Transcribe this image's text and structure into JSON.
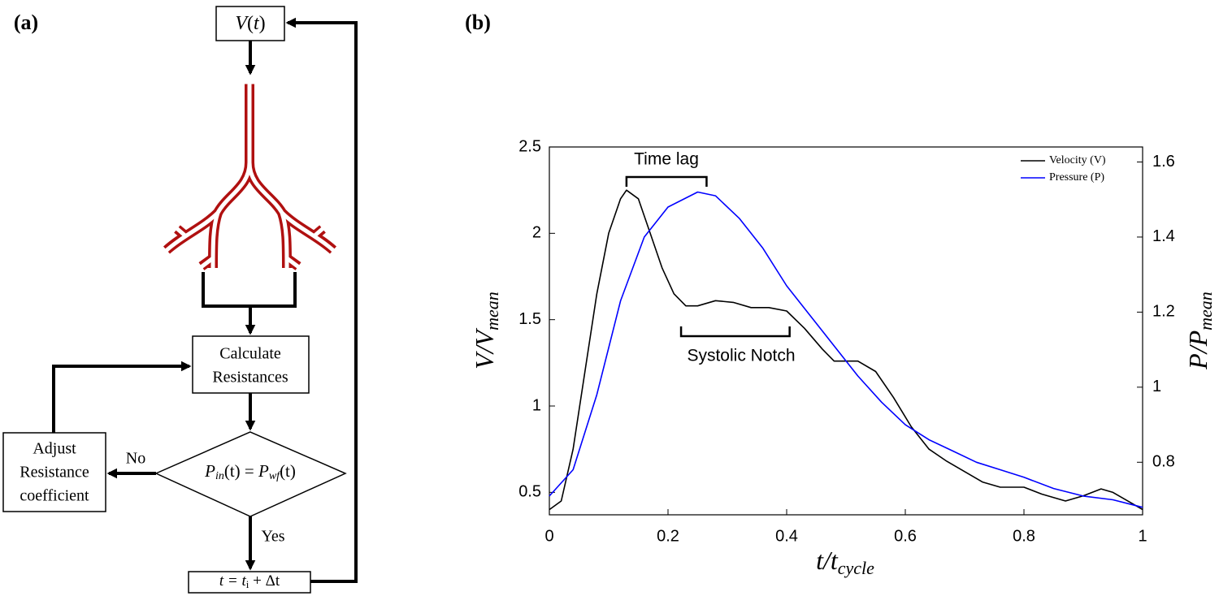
{
  "panels": {
    "a": "(a)",
    "b": "(b)"
  },
  "diagram": {
    "input_box": {
      "parts": [
        "V",
        "(",
        "t",
        ")"
      ]
    },
    "calculate_box": {
      "lines": [
        "Calculate",
        "Resistances"
      ]
    },
    "adjust_box": {
      "lines": [
        "Adjust",
        "Resistance",
        "coefficient"
      ]
    },
    "decision": {
      "parts": [
        "P",
        "in",
        "(t) = ",
        "P",
        "wf",
        "(t)"
      ]
    },
    "no_label": "No",
    "yes_label": "Yes",
    "step_box": {
      "parts": [
        "t = t",
        "i",
        " + Δt"
      ]
    }
  },
  "chart_data": {
    "type": "line",
    "xlabel": {
      "base": "t/t",
      "sub": "cycle"
    },
    "ylabel": {
      "base": "V/V",
      "sub": "mean"
    },
    "y2label": {
      "base": "P/P",
      "sub": "mean"
    },
    "xlim": [
      0,
      1
    ],
    "xticks": [
      0,
      0.2,
      0.4,
      0.6,
      0.8,
      1
    ],
    "ylim": [
      0.37,
      2.5
    ],
    "yticks": [
      0.5,
      1,
      1.5,
      2,
      2.5
    ],
    "y2lim": [
      0.66,
      1.64
    ],
    "y2ticks": [
      0.8,
      1,
      1.2,
      1.4,
      1.6
    ],
    "legend": "upper right",
    "annotations": [
      "Time lag",
      "Systolic Notch"
    ],
    "series": [
      {
        "name": "Velocity (V)",
        "color": "#000000",
        "x": [
          0,
          0.02,
          0.04,
          0.06,
          0.08,
          0.1,
          0.12,
          0.13,
          0.15,
          0.17,
          0.19,
          0.21,
          0.23,
          0.25,
          0.28,
          0.31,
          0.34,
          0.37,
          0.4,
          0.43,
          0.46,
          0.48,
          0.52,
          0.55,
          0.58,
          0.61,
          0.64,
          0.67,
          0.7,
          0.73,
          0.76,
          0.8,
          0.83,
          0.87,
          0.9,
          0.93,
          0.95,
          0.98,
          1
        ],
        "values": [
          0.4,
          0.45,
          0.75,
          1.2,
          1.65,
          2.0,
          2.2,
          2.25,
          2.2,
          2.0,
          1.8,
          1.65,
          1.58,
          1.58,
          1.61,
          1.6,
          1.57,
          1.57,
          1.55,
          1.45,
          1.33,
          1.26,
          1.26,
          1.2,
          1.05,
          0.88,
          0.75,
          0.68,
          0.62,
          0.56,
          0.53,
          0.53,
          0.49,
          0.45,
          0.48,
          0.52,
          0.5,
          0.44,
          0.4
        ]
      },
      {
        "name": "Pressure (P)",
        "color": "#0000ff",
        "axis": "y2",
        "x": [
          0,
          0.04,
          0.08,
          0.12,
          0.16,
          0.2,
          0.25,
          0.28,
          0.32,
          0.36,
          0.4,
          0.44,
          0.48,
          0.52,
          0.56,
          0.6,
          0.64,
          0.68,
          0.72,
          0.76,
          0.8,
          0.85,
          0.9,
          0.95,
          1
        ],
        "values": [
          0.71,
          0.78,
          0.98,
          1.23,
          1.4,
          1.48,
          1.52,
          1.51,
          1.45,
          1.37,
          1.27,
          1.19,
          1.11,
          1.03,
          0.96,
          0.9,
          0.86,
          0.83,
          0.8,
          0.78,
          0.76,
          0.73,
          0.71,
          0.7,
          0.68
        ]
      }
    ]
  }
}
